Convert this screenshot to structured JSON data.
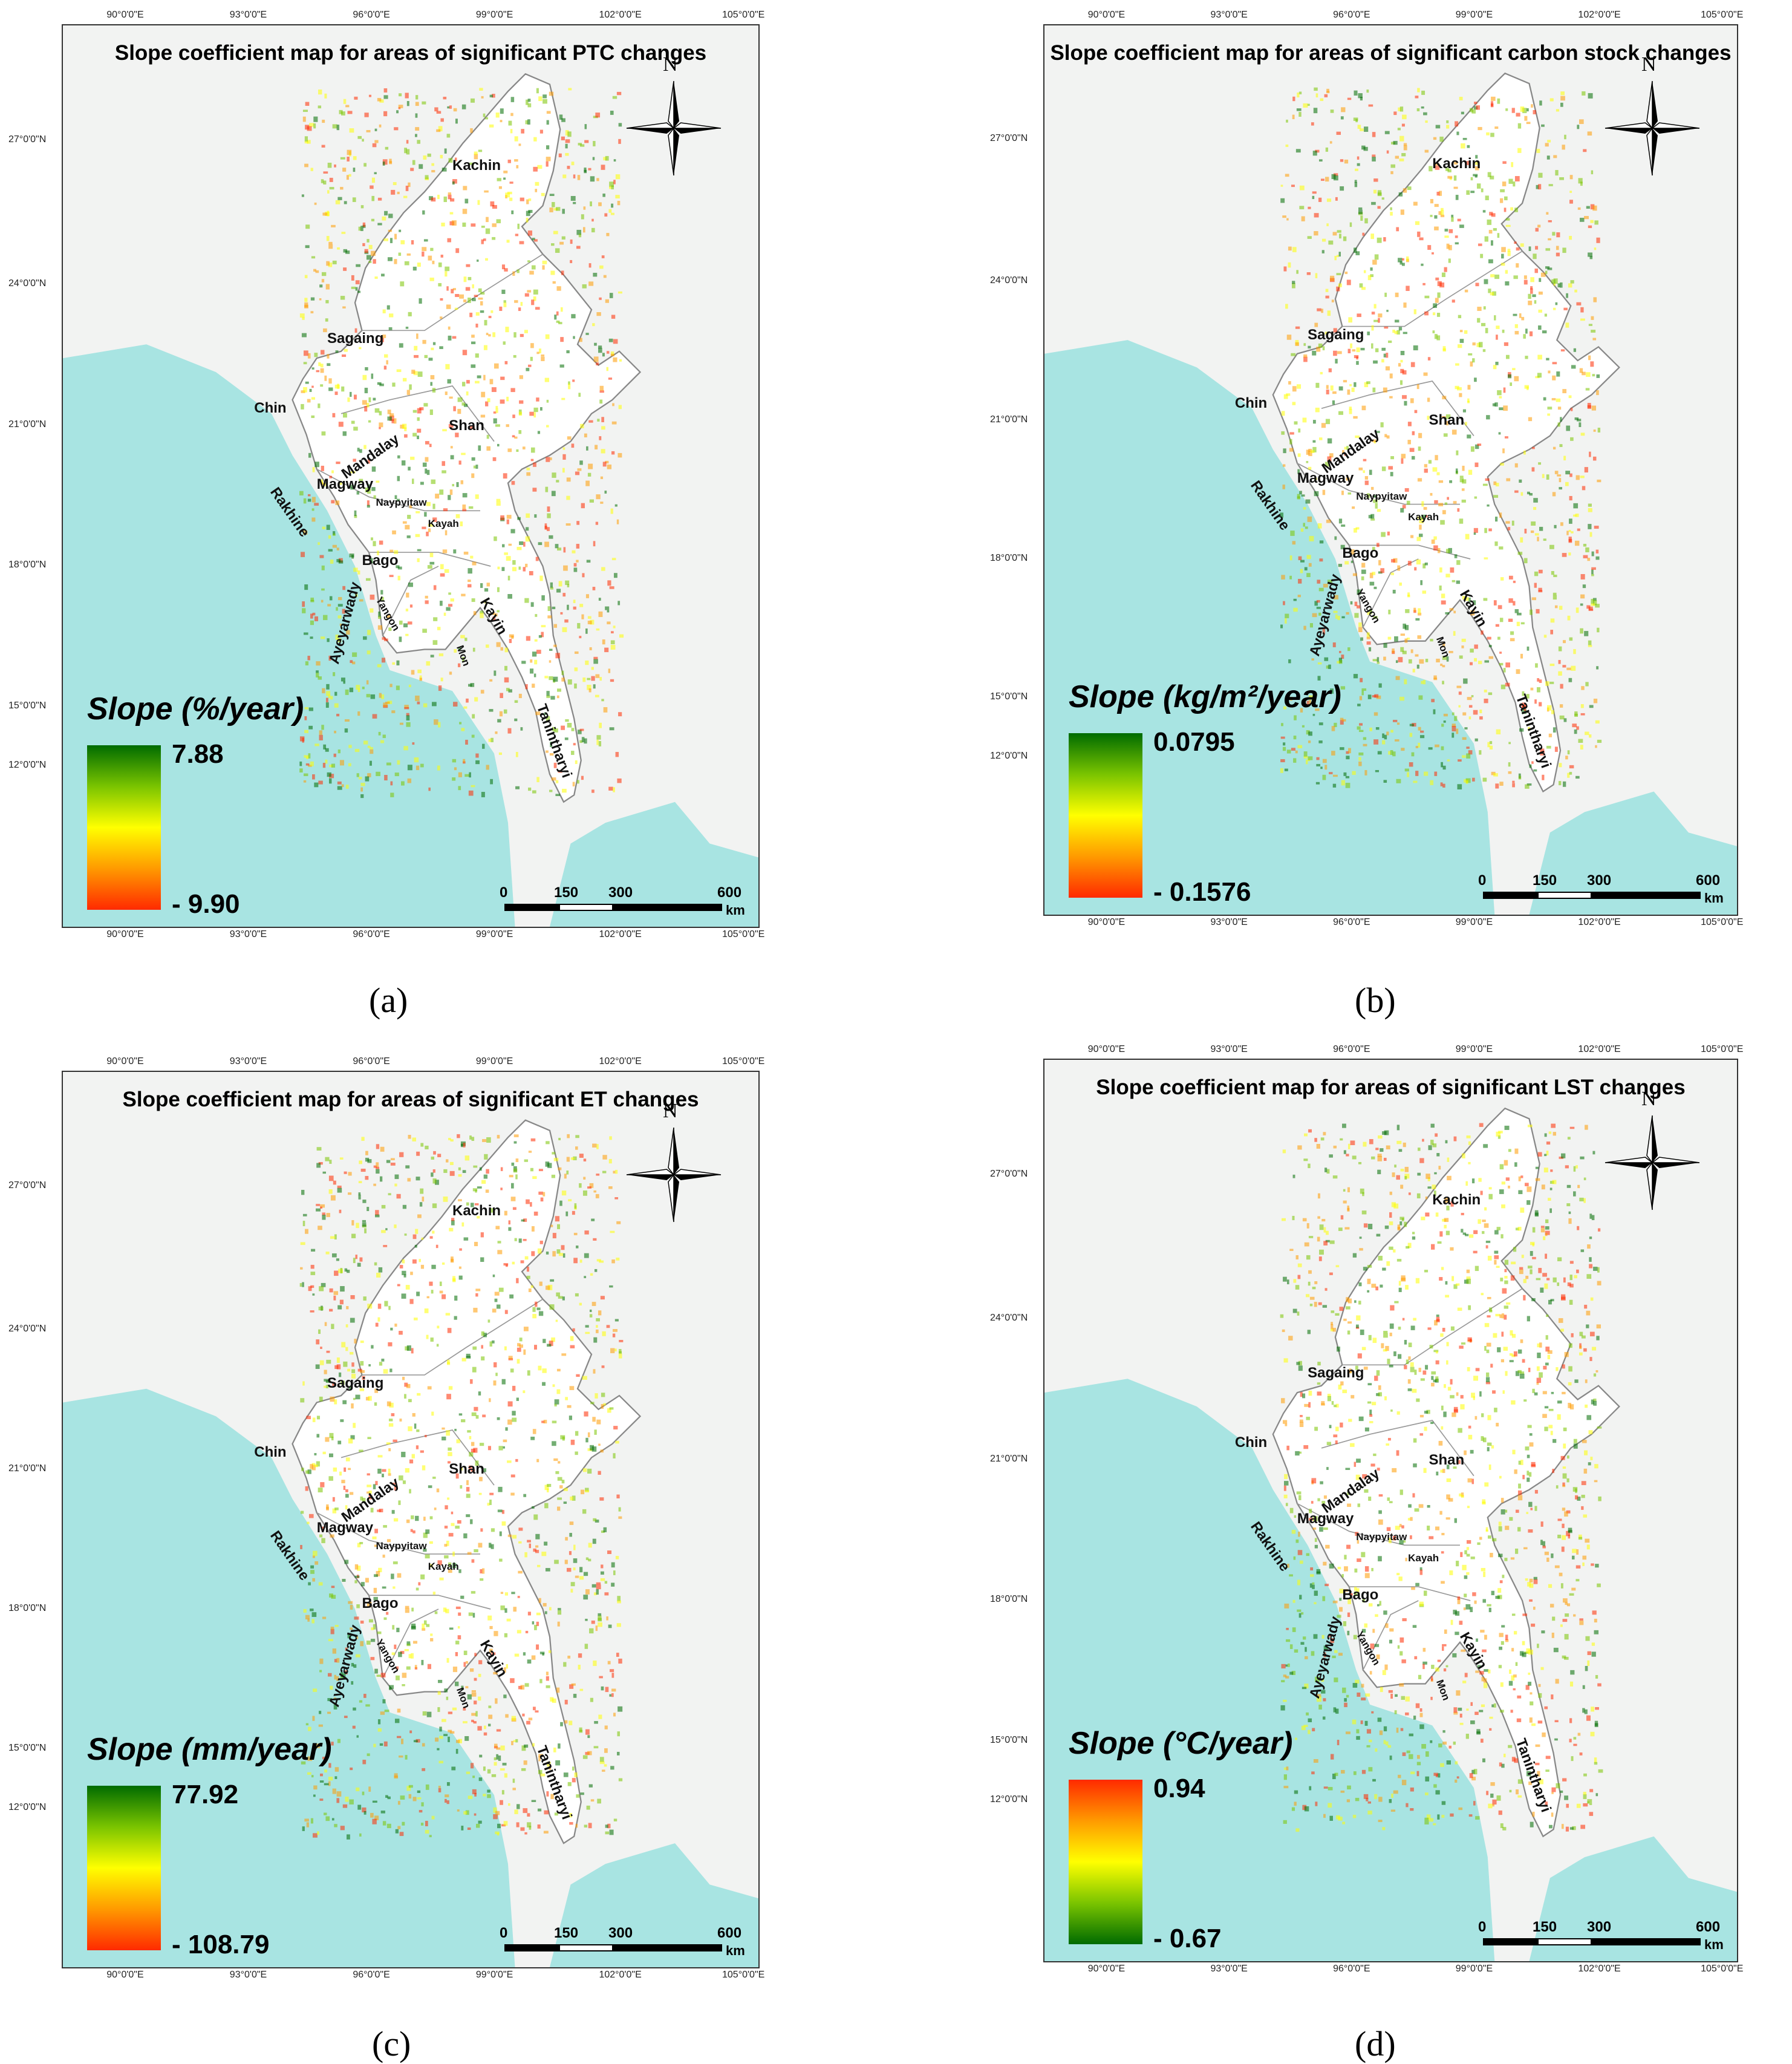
{
  "panels": [
    {
      "caption": "(a)",
      "title": "Slope coefficient map for areas of significant PTC changes",
      "legend_title": "Slope (%/year)",
      "legend_max": "7.88",
      "legend_min": "- 9.90",
      "legend_colors": [
        "#006b00",
        "#7ac400",
        "#ffff00",
        "#ff9a00",
        "#ff2a00"
      ],
      "regions": [
        "Kachin",
        "Sagaing",
        "Chin",
        "Mandalay",
        "Shan",
        "Magway",
        "Rakhine",
        "Naypyitaw",
        "Kayah",
        "Bago",
        "Ayeyarwady",
        "Yangon",
        "Kayin",
        "Mon",
        "Tanintharyi"
      ]
    },
    {
      "caption": "(b)",
      "title": "Slope coefficient map for areas of significant carbon stock changes",
      "legend_title": "Slope (kg/m²/year)",
      "legend_max": "0.0795",
      "legend_min": "- 0.1576",
      "legend_colors": [
        "#006b00",
        "#7ac400",
        "#ffff00",
        "#ff9a00",
        "#ff2a00"
      ],
      "regions": [
        "Kachin",
        "Sagaing",
        "Chin",
        "Mandalay",
        "Shan",
        "Magway",
        "Rakhine",
        "Naypyitaw",
        "Kayah",
        "Bago",
        "Ayeyarwady",
        "Yangon",
        "Kayin",
        "Mon",
        "Tanintharyi"
      ]
    },
    {
      "caption": "(c)",
      "title": "Slope coefficient map for areas of significant ET changes",
      "legend_title": "Slope (mm/year)",
      "legend_max": "77.92",
      "legend_min": "- 108.79",
      "legend_colors": [
        "#006b00",
        "#7ac400",
        "#ffff00",
        "#ff9a00",
        "#ff2a00"
      ],
      "regions": [
        "Kachin",
        "Sagaing",
        "Chin",
        "Mandalay",
        "Shan",
        "Magway",
        "Rakhine",
        "Naypyitaw",
        "Kayah",
        "Bago",
        "Ayeyarwady",
        "Yangon",
        "Kayin",
        "Mon",
        "Tanintharyi"
      ]
    },
    {
      "caption": "(d)",
      "title": "Slope coefficient map for areas of significant LST changes",
      "legend_title": "Slope (°C/year)",
      "legend_max": "0.94",
      "legend_min": "- 0.67",
      "legend_colors": [
        "#ff2a00",
        "#ff9a00",
        "#ffff00",
        "#7ac400",
        "#006b00"
      ],
      "regions": [
        "Kachin",
        "Sagaing",
        "Chin",
        "Mandalay",
        "Shan",
        "Magway",
        "Rakhine",
        "Naypyitaw",
        "Kayah",
        "Bago",
        "Ayeyarwady",
        "Yangon",
        "Kayin",
        "Mon",
        "Tanintharyi"
      ]
    }
  ],
  "lon_ticks": [
    "90°0'0\"E",
    "93°0'0\"E",
    "96°0'0\"E",
    "99°0'0\"E",
    "102°0'0\"E",
    "105°0'0\"E"
  ],
  "lat_ticks": [
    "27°0'0\"N",
    "24°0'0\"N",
    "21°0'0\"N",
    "18°0'0\"N",
    "15°0'0\"N",
    "12°0'0\"N"
  ],
  "north_label": "N",
  "scale_labels": [
    "0",
    "150",
    "300",
    "600"
  ],
  "scale_unit": "km",
  "colors": {
    "sea": "#a8e4e2",
    "land": "#f2f3f2",
    "myanmar": "#ffffff",
    "border": "#888888"
  }
}
